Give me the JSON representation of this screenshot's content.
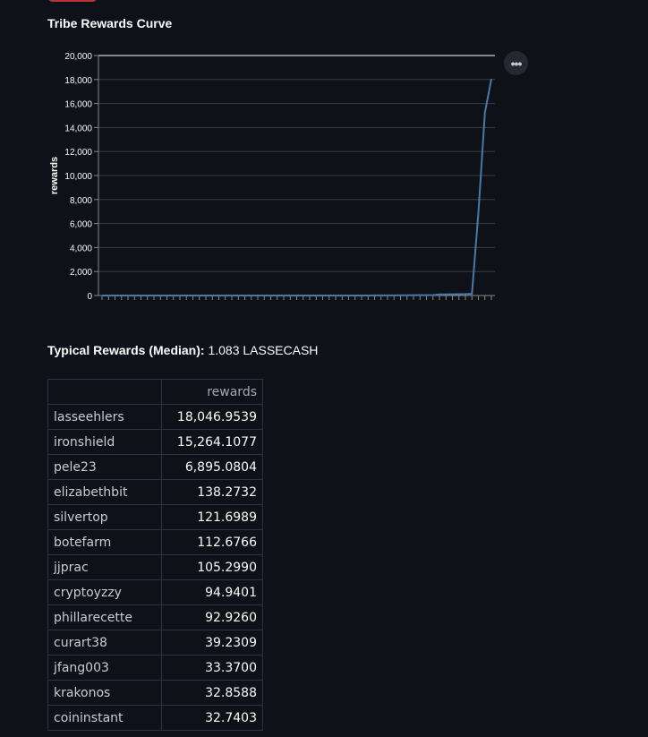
{
  "section": {
    "title": "Tribe Rewards Curve"
  },
  "chart_menu": {
    "icon": "more-horizontal-icon",
    "glyph": "•••"
  },
  "chart_data": {
    "type": "line",
    "title": "",
    "xlabel": "",
    "ylabel": "rewards",
    "ylim": [
      0,
      20000
    ],
    "yticks": [
      0,
      2000,
      4000,
      6000,
      8000,
      10000,
      12000,
      14000,
      16000,
      18000,
      20000
    ],
    "ytick_labels": [
      "0",
      "2,000",
      "4,000",
      "6,000",
      "8,000",
      "10,000",
      "12,000",
      "14,000",
      "16,000",
      "18,000",
      "20,000"
    ],
    "grid": true,
    "color": "#4c78a8",
    "series": [
      {
        "values": [
          0,
          0,
          0,
          0,
          0,
          0,
          0,
          0,
          0,
          0,
          0,
          0,
          0,
          0,
          0,
          0,
          0,
          0,
          0,
          0,
          0,
          1,
          1,
          1,
          1,
          1,
          1,
          1,
          1,
          1,
          1,
          1,
          1,
          1,
          1,
          2,
          2,
          2,
          2,
          3,
          3,
          3,
          4,
          5,
          6,
          8,
          12,
          20,
          32.7403,
          32.8588,
          33.37,
          39.2309,
          92.926,
          94.9401,
          105.299,
          112.6766,
          121.6989,
          138.2732,
          6895.0804,
          15264.1077,
          18046.9539
        ]
      }
    ]
  },
  "median": {
    "label": "Typical Rewards (Median):",
    "value": "1.083 LASSECASH"
  },
  "table": {
    "header": "rewards",
    "rows": [
      {
        "name": "lasseehlers",
        "value": "18,046.9539"
      },
      {
        "name": "ironshield",
        "value": "15,264.1077"
      },
      {
        "name": "pele23",
        "value": "6,895.0804"
      },
      {
        "name": "elizabethbit",
        "value": "138.2732"
      },
      {
        "name": "silvertop",
        "value": "121.6989"
      },
      {
        "name": "botefarm",
        "value": "112.6766"
      },
      {
        "name": "jjprac",
        "value": "105.2990"
      },
      {
        "name": "cryptoyzzy",
        "value": "94.9401"
      },
      {
        "name": "phillarecette",
        "value": "92.9260"
      },
      {
        "name": "curart38",
        "value": "39.2309"
      },
      {
        "name": "jfang003",
        "value": "33.3700"
      },
      {
        "name": "krakonos",
        "value": "32.8588"
      },
      {
        "name": "coininstant",
        "value": "32.7403"
      }
    ]
  }
}
